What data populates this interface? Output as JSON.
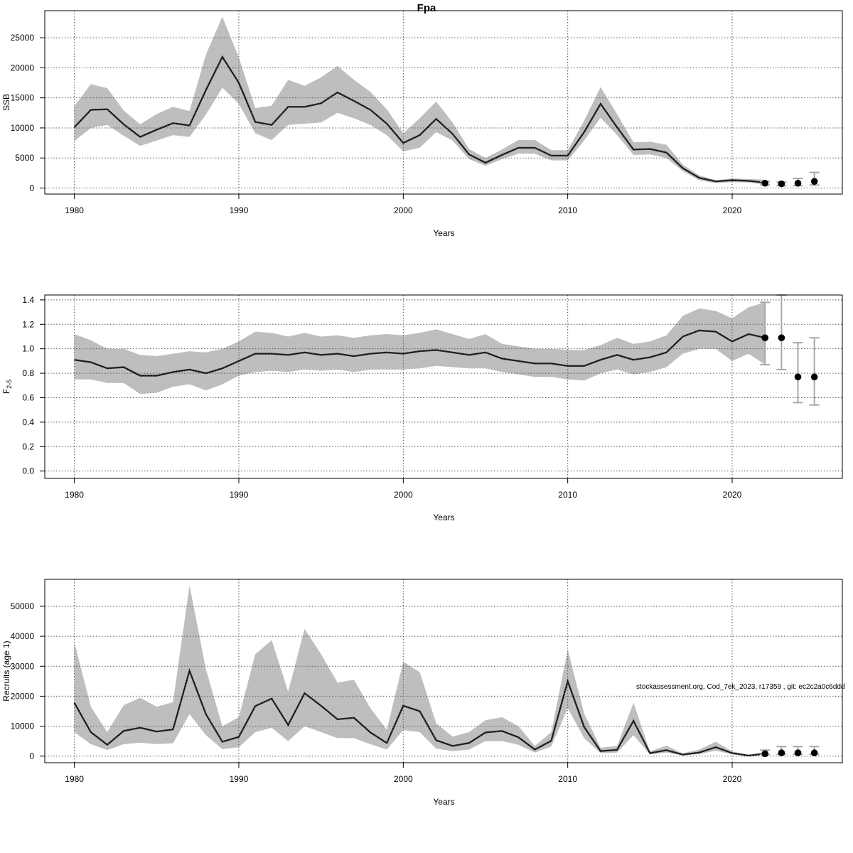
{
  "title": "Fpa",
  "watermark": "stockassessment.org, Cod_7ek_2023, r17359 , git: ec2c2a0c6ddd",
  "colors": {
    "band": "#bebebe",
    "line": "#000000",
    "grid": "#555555",
    "errorbar": "#a8a8a8"
  },
  "chart_data": [
    {
      "type": "line",
      "ylabel": "SSB",
      "xlabel": "Years",
      "xlim": [
        1978.2,
        2026.7
      ],
      "ylim": [
        -1000,
        29500
      ],
      "xticks": [
        1980,
        1990,
        2000,
        2010,
        2020
      ],
      "yticks": [
        0,
        5000,
        10000,
        15000,
        20000,
        25000
      ],
      "grid": true,
      "years": [
        1980,
        1981,
        1982,
        1983,
        1984,
        1985,
        1986,
        1987,
        1988,
        1989,
        1990,
        1991,
        1992,
        1993,
        1994,
        1995,
        1996,
        1997,
        1998,
        1999,
        2000,
        2001,
        2002,
        2003,
        2004,
        2005,
        2006,
        2007,
        2008,
        2009,
        2010,
        2011,
        2012,
        2013,
        2014,
        2015,
        2016,
        2017,
        2018,
        2019,
        2020,
        2021,
        2022
      ],
      "estimate": [
        10100,
        13000,
        13100,
        10600,
        8500,
        9700,
        10800,
        10400,
        16300,
        21800,
        17500,
        11000,
        10500,
        13500,
        13500,
        14100,
        15900,
        14500,
        13000,
        10700,
        7500,
        8800,
        11500,
        9000,
        5600,
        4200,
        5500,
        6700,
        6700,
        5400,
        5400,
        9300,
        14000,
        10100,
        6400,
        6500,
        5900,
        3300,
        1700,
        1100,
        1300,
        1200,
        900
      ],
      "lower": [
        7800,
        10000,
        10500,
        8700,
        7000,
        7900,
        8800,
        8500,
        12200,
        16700,
        14000,
        9100,
        8000,
        10500,
        10700,
        10900,
        12500,
        11600,
        10500,
        8800,
        6100,
        6700,
        9300,
        7900,
        4800,
        3700,
        4800,
        5700,
        5700,
        4600,
        4600,
        7900,
        11700,
        8800,
        5500,
        5600,
        5000,
        2800,
        1300,
        800,
        1000,
        900,
        600
      ],
      "upper": [
        13600,
        17300,
        16600,
        12900,
        10600,
        12300,
        13500,
        12800,
        22200,
        28500,
        21700,
        13300,
        13700,
        18000,
        17000,
        18400,
        20300,
        18000,
        16000,
        13100,
        9100,
        11600,
        14400,
        10900,
        6500,
        5000,
        6400,
        8000,
        8000,
        6300,
        6300,
        11200,
        16800,
        12300,
        7600,
        7700,
        7200,
        3900,
        2100,
        1300,
        1600,
        1500,
        1400
      ],
      "projection_years": [
        2022,
        2023,
        2024,
        2025
      ],
      "projection_points": [
        800,
        700,
        800,
        1100
      ],
      "projection_lower": [
        500,
        400,
        400,
        500
      ],
      "projection_upper": [
        1100,
        1000,
        1600,
        2600
      ]
    },
    {
      "type": "line",
      "ylabel_main": "F",
      "ylabel_sub": "2-5",
      "xlabel": "Years",
      "xlim": [
        1978.2,
        2026.7
      ],
      "ylim": [
        -0.06,
        1.44
      ],
      "xticks": [
        1980,
        1990,
        2000,
        2010,
        2020
      ],
      "yticks": [
        "0.0",
        "0.2",
        "0.4",
        "0.6",
        "0.8",
        "1.0",
        "1.2",
        "1.4"
      ],
      "grid": true,
      "years": [
        1980,
        1981,
        1982,
        1983,
        1984,
        1985,
        1986,
        1987,
        1988,
        1989,
        1990,
        1991,
        1992,
        1993,
        1994,
        1995,
        1996,
        1997,
        1998,
        1999,
        2000,
        2001,
        2002,
        2003,
        2004,
        2005,
        2006,
        2007,
        2008,
        2009,
        2010,
        2011,
        2012,
        2013,
        2014,
        2015,
        2016,
        2017,
        2018,
        2019,
        2020,
        2021,
        2022
      ],
      "estimate": [
        0.91,
        0.89,
        0.84,
        0.85,
        0.78,
        0.78,
        0.81,
        0.83,
        0.8,
        0.84,
        0.9,
        0.96,
        0.96,
        0.95,
        0.97,
        0.95,
        0.96,
        0.94,
        0.96,
        0.97,
        0.96,
        0.98,
        0.99,
        0.97,
        0.95,
        0.97,
        0.92,
        0.9,
        0.88,
        0.88,
        0.86,
        0.86,
        0.91,
        0.95,
        0.91,
        0.93,
        0.97,
        1.1,
        1.15,
        1.14,
        1.06,
        1.12,
        1.09
      ],
      "lower": [
        0.75,
        0.75,
        0.72,
        0.72,
        0.63,
        0.64,
        0.69,
        0.71,
        0.66,
        0.71,
        0.78,
        0.81,
        0.82,
        0.81,
        0.83,
        0.82,
        0.83,
        0.81,
        0.83,
        0.83,
        0.83,
        0.84,
        0.86,
        0.85,
        0.84,
        0.84,
        0.81,
        0.79,
        0.77,
        0.77,
        0.75,
        0.74,
        0.8,
        0.83,
        0.79,
        0.81,
        0.85,
        0.96,
        1.0,
        1.0,
        0.9,
        0.96,
        0.87
      ],
      "upper": [
        1.12,
        1.07,
        1.0,
        1.0,
        0.95,
        0.94,
        0.96,
        0.98,
        0.97,
        1.0,
        1.06,
        1.14,
        1.13,
        1.1,
        1.13,
        1.1,
        1.11,
        1.09,
        1.11,
        1.12,
        1.11,
        1.13,
        1.16,
        1.12,
        1.08,
        1.12,
        1.04,
        1.02,
        1.0,
        1.0,
        0.99,
        0.99,
        1.03,
        1.09,
        1.04,
        1.06,
        1.11,
        1.27,
        1.33,
        1.31,
        1.25,
        1.34,
        1.38
      ],
      "projection_years": [
        2022,
        2023,
        2024,
        2025
      ],
      "projection_points": [
        1.09,
        1.09,
        0.77,
        0.77
      ],
      "projection_lower": [
        0.87,
        0.83,
        0.56,
        0.54
      ],
      "projection_upper": [
        1.38,
        1.44,
        1.05,
        1.09
      ]
    },
    {
      "type": "line",
      "ylabel": "Recruits (age 1)",
      "xlabel": "Years",
      "xlim": [
        1978.2,
        2026.7
      ],
      "ylim": [
        -2200,
        59000
      ],
      "xticks": [
        1980,
        1990,
        2000,
        2010,
        2020
      ],
      "yticks": [
        0,
        10000,
        20000,
        30000,
        40000,
        50000
      ],
      "grid": true,
      "years": [
        1980,
        1981,
        1982,
        1983,
        1984,
        1985,
        1986,
        1987,
        1988,
        1989,
        1990,
        1991,
        1992,
        1993,
        1994,
        1995,
        1996,
        1997,
        1998,
        1999,
        2000,
        2001,
        2002,
        2003,
        2004,
        2005,
        2006,
        2007,
        2008,
        2009,
        2010,
        2011,
        2012,
        2013,
        2014,
        2015,
        2016,
        2017,
        2018,
        2019,
        2020,
        2021,
        2022
      ],
      "estimate": [
        17800,
        8000,
        3800,
        8400,
        9500,
        8200,
        8900,
        28500,
        14000,
        4800,
        6400,
        16700,
        19200,
        10400,
        21000,
        16800,
        12300,
        12800,
        7900,
        4400,
        16800,
        15000,
        5300,
        3400,
        4400,
        7900,
        8400,
        6300,
        2200,
        5100,
        25000,
        9700,
        1700,
        2100,
        11800,
        1000,
        2000,
        500,
        1200,
        3000,
        1000,
        200,
        800
      ],
      "lower": [
        8000,
        4000,
        2000,
        4000,
        4500,
        4000,
        4300,
        14000,
        7000,
        2300,
        3000,
        8000,
        9500,
        5000,
        10000,
        8000,
        6000,
        6000,
        4000,
        2200,
        8700,
        8000,
        2500,
        1700,
        2200,
        5000,
        5000,
        3800,
        1200,
        3200,
        16000,
        6000,
        1000,
        1200,
        7000,
        600,
        1200,
        300,
        700,
        1800,
        600,
        100,
        500
      ],
      "upper": [
        38000,
        16500,
        8000,
        17000,
        19500,
        16500,
        18000,
        57000,
        29000,
        10000,
        13000,
        34000,
        38700,
        21500,
        42500,
        34000,
        24500,
        25500,
        16000,
        8800,
        31500,
        28000,
        11000,
        6500,
        8000,
        12000,
        13000,
        10000,
        3400,
        8000,
        35500,
        14200,
        2800,
        3400,
        17800,
        1600,
        3500,
        900,
        2200,
        4800,
        1600,
        400,
        1400
      ],
      "projection_years": [
        2022,
        2023,
        2024,
        2025
      ],
      "projection_points": [
        800,
        1100,
        1100,
        1100
      ],
      "projection_lower": [
        500,
        600,
        600,
        600
      ],
      "projection_upper": [
        2000,
        3200,
        3200,
        3200
      ]
    }
  ]
}
